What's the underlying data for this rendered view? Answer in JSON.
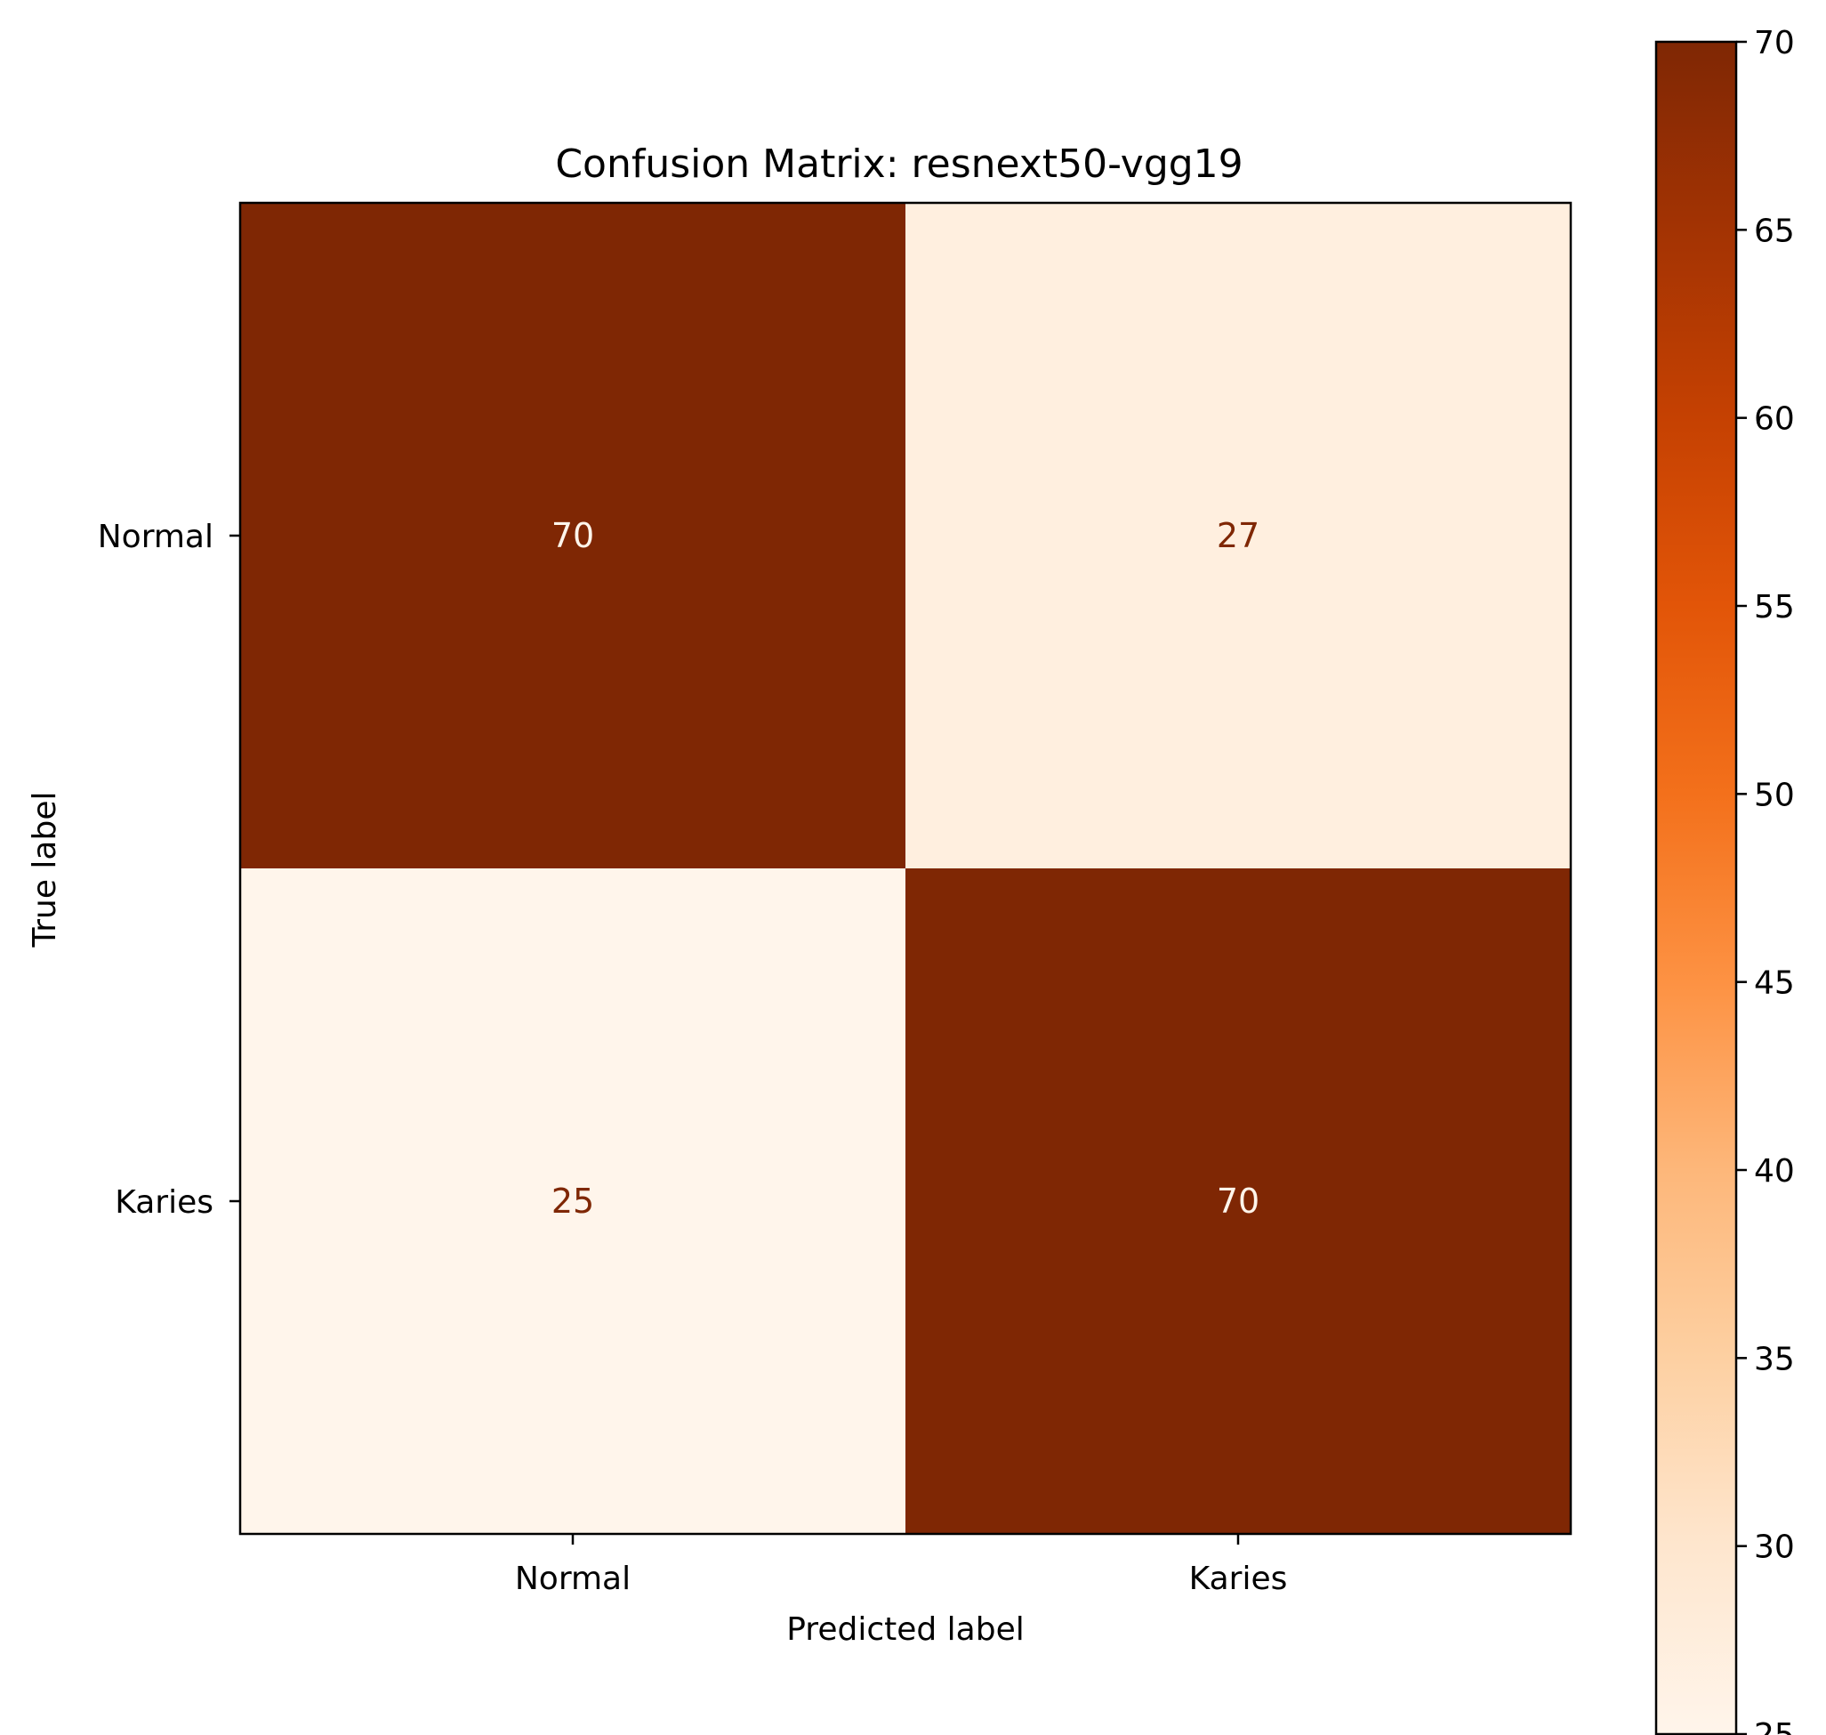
{
  "chart_data": {
    "type": "heatmap",
    "title": "Confusion Matrix: resnext50-vgg19",
    "xlabel": "Predicted label",
    "ylabel": "True label",
    "x_categories": [
      "Normal",
      "Karies"
    ],
    "y_categories": [
      "Normal",
      "Karies"
    ],
    "values": [
      [
        70,
        27
      ],
      [
        25,
        70
      ]
    ],
    "colormap": "Oranges",
    "colors": {
      "low": "#fff5eb",
      "high": "#7f2704",
      "text_on_dark": "#fff5eb",
      "text_on_light": "#7f2704"
    },
    "colorbar": {
      "range": [
        25,
        70
      ],
      "ticks": [
        "25",
        "30",
        "35",
        "40",
        "45",
        "50",
        "55",
        "60",
        "65",
        "70"
      ],
      "tick_values": [
        25,
        30,
        35,
        40,
        45,
        50,
        55,
        60,
        65,
        70
      ]
    },
    "grid": false
  }
}
